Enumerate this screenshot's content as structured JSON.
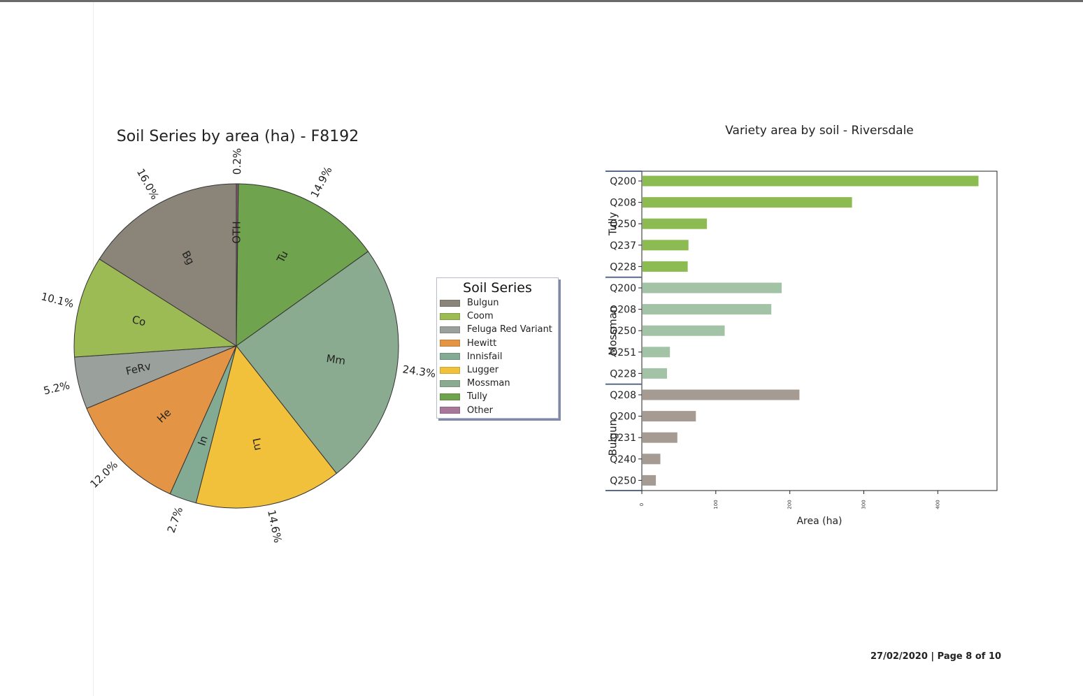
{
  "footer": {
    "date": "27/02/2020",
    "page": "Page 8 of 10"
  },
  "chart_data": [
    {
      "type": "pie",
      "title": "Soil Series by area (ha) - F8192",
      "slices": [
        {
          "label": "OTH",
          "pct_label": "0.2%",
          "value": 0.2,
          "color": "#8e5a7a"
        },
        {
          "label": "Tu",
          "pct_label": "14.9%",
          "value": 14.9,
          "color": "#6fa34d"
        },
        {
          "label": "Mm",
          "pct_label": "24.3%",
          "value": 24.3,
          "color": "#8aab8f"
        },
        {
          "label": "Lu",
          "pct_label": "14.6%",
          "value": 14.6,
          "color": "#f2c13b"
        },
        {
          "label": "In",
          "pct_label": "2.7%",
          "value": 2.7,
          "color": "#83aa92"
        },
        {
          "label": "He",
          "pct_label": "12.0%",
          "value": 12.0,
          "color": "#e39445"
        },
        {
          "label": "FeRv",
          "pct_label": "5.2%",
          "value": 5.2,
          "color": "#9aa09c"
        },
        {
          "label": "Co",
          "pct_label": "10.1%",
          "value": 10.1,
          "color": "#9cbb55"
        },
        {
          "label": "Bg",
          "pct_label": "16.0%",
          "value": 16.0,
          "color": "#8b8579"
        }
      ],
      "legend": {
        "title": "Soil Series",
        "placement": "right",
        "entries": [
          {
            "name": "Bulgun",
            "color": "#8b8579"
          },
          {
            "name": "Coom",
            "color": "#9cbb55"
          },
          {
            "name": "Feluga Red Variant",
            "color": "#9aa09c"
          },
          {
            "name": "Hewitt",
            "color": "#e39445"
          },
          {
            "name": "Innisfail",
            "color": "#83aa92"
          },
          {
            "name": "Lugger",
            "color": "#f2c13b"
          },
          {
            "name": "Mossman",
            "color": "#8aab8f"
          },
          {
            "name": "Tully",
            "color": "#6fa34d"
          },
          {
            "name": "Other",
            "color": "#a8789a"
          }
        ]
      }
    },
    {
      "type": "bar",
      "orientation": "horizontal",
      "title": "Variety area by soil - Riversdale",
      "xlabel": "Area (ha)",
      "xlim": [
        0,
        480
      ],
      "xticks": [
        0,
        100,
        200,
        300,
        400
      ],
      "groups": [
        {
          "name": "Tully",
          "color": "#8cbb52",
          "bars": [
            {
              "label": "Q200",
              "value": 455
            },
            {
              "label": "Q208",
              "value": 284
            },
            {
              "label": "Q250",
              "value": 88
            },
            {
              "label": "Q237",
              "value": 63
            },
            {
              "label": "Q228",
              "value": 62
            }
          ]
        },
        {
          "name": "Mossman",
          "color": "#a2c3a6",
          "bars": [
            {
              "label": "Q200",
              "value": 189
            },
            {
              "label": "Q208",
              "value": 175
            },
            {
              "label": "Q250",
              "value": 112
            },
            {
              "label": "Q251",
              "value": 38
            },
            {
              "label": "Q228",
              "value": 34
            }
          ]
        },
        {
          "name": "Bulgun",
          "color": "#a59b92",
          "bars": [
            {
              "label": "Q208",
              "value": 213
            },
            {
              "label": "Q200",
              "value": 73
            },
            {
              "label": "Q231",
              "value": 48
            },
            {
              "label": "Q240",
              "value": 25
            },
            {
              "label": "Q250",
              "value": 19
            }
          ]
        }
      ]
    }
  ]
}
